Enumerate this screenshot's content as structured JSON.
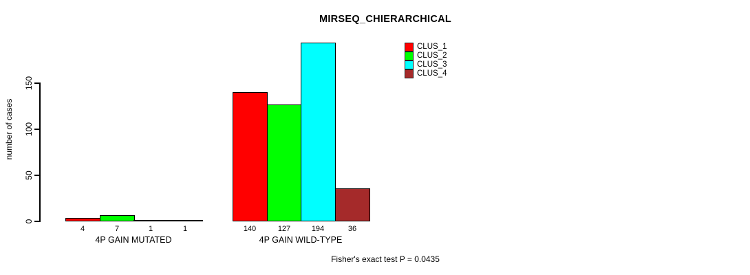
{
  "chart_data": {
    "type": "bar",
    "title": "MIRSEQ_CHIERARCHICAL",
    "ylabel": "number of cases",
    "xlabel": "",
    "yticks": [
      0,
      50,
      100,
      150
    ],
    "ylim": [
      0,
      200
    ],
    "grid": false,
    "legend_position": "top-right",
    "categories": [
      "4P GAIN MUTATED",
      "4P GAIN WILD-TYPE"
    ],
    "series": [
      {
        "name": "CLUS_1",
        "color": "#FF0000",
        "values": [
          4,
          140
        ]
      },
      {
        "name": "CLUS_2",
        "color": "#00FF00",
        "values": [
          7,
          127
        ]
      },
      {
        "name": "CLUS_3",
        "color": "#00FFFF",
        "values": [
          1,
          194
        ]
      },
      {
        "name": "CLUS_4",
        "color": "#A52A2A",
        "values": [
          1,
          36
        ]
      }
    ],
    "bar_value_labels": [
      [
        "4",
        "7",
        "1",
        "1"
      ],
      [
        "140",
        "127",
        "194",
        "36"
      ]
    ],
    "annotation": "Fisher's exact test P = 0.0435"
  }
}
